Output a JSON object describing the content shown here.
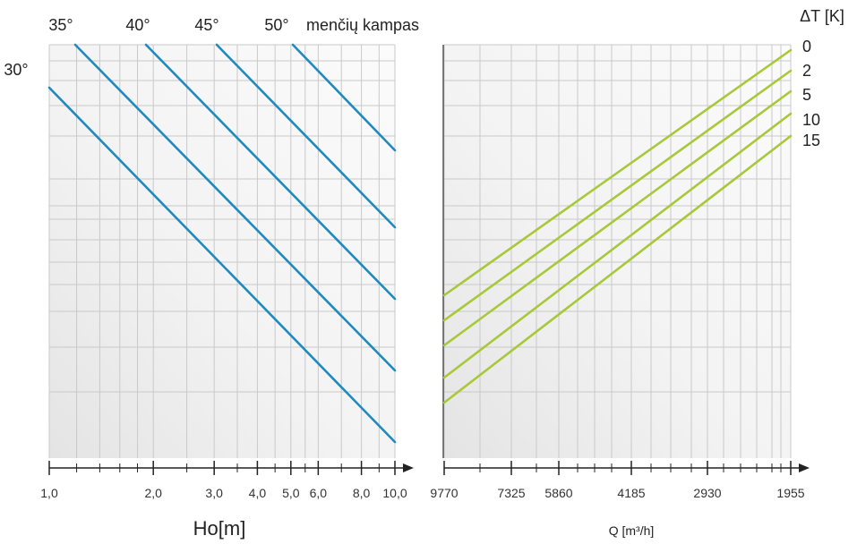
{
  "chart_data": {
    "type": "line",
    "left_panel": {
      "xlabel": "Ho[m]",
      "x_scale": "log",
      "x_ticks": [
        "1,0",
        "2,0",
        "3,0",
        "4,0",
        "5,0",
        "6,0",
        "8,0",
        "10,0"
      ],
      "xlim": [
        1.0,
        10.0
      ],
      "header_title": "menčių kampas",
      "series": [
        {
          "name": "30°",
          "color": "#1f8ac0",
          "x": [
            1.0,
            10.0
          ]
        },
        {
          "name": "35°",
          "color": "#1f8ac0",
          "x": [
            1.2,
            10.0
          ]
        },
        {
          "name": "40°",
          "color": "#1f8ac0",
          "x": [
            1.7,
            10.0
          ]
        },
        {
          "name": "45°",
          "color": "#1f8ac0",
          "x": [
            3.0,
            10.0
          ]
        },
        {
          "name": "50°",
          "color": "#1f8ac0",
          "x": [
            5.0,
            10.0
          ]
        }
      ]
    },
    "right_panel": {
      "xlabel": "Q [m³/h]",
      "x_ticks": [
        "9770",
        "7325",
        "5860",
        "4185",
        "2930",
        "1955"
      ],
      "legend_title": "ΔT [K]",
      "series": [
        {
          "name": "0",
          "color": "#a8c83a",
          "x": [
            9770,
            1955
          ]
        },
        {
          "name": "2",
          "color": "#a8c83a",
          "x": [
            9770,
            1955
          ]
        },
        {
          "name": "5",
          "color": "#a8c83a",
          "x": [
            9770,
            1955
          ]
        },
        {
          "name": "10",
          "color": "#a8c83a",
          "x": [
            9770,
            1955
          ]
        },
        {
          "name": "15",
          "color": "#a8c83a",
          "x": [
            9770,
            1955
          ]
        }
      ]
    },
    "grid": true
  }
}
